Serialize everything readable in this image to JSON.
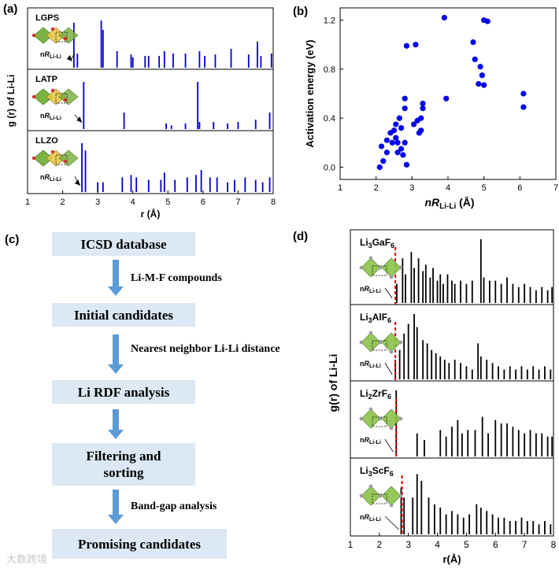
{
  "panel_labels": {
    "a": "(a)",
    "b": "(b)",
    "c": "(c)",
    "d": "(d)"
  },
  "chart_data": [
    {
      "type": "line",
      "id": "a",
      "title": "",
      "xlabel": "r (Å)",
      "ylabel": "g (r) of Li-Li",
      "xlim": [
        1,
        8
      ],
      "x_ticks": [
        "1",
        "2",
        "3",
        "4",
        "5",
        "6",
        "7",
        "8"
      ],
      "annotation_prefix": "n",
      "annotation_symbol": "R",
      "annotation_sub": "Li-Li",
      "color": "#0000cc",
      "subplots": [
        {
          "name": "LGPS",
          "peaks": [
            [
              2.32,
              0.95
            ],
            [
              2.42,
              0.3
            ],
            [
              3.1,
              1.0
            ],
            [
              3.15,
              0.8
            ],
            [
              3.55,
              0.35
            ],
            [
              3.95,
              0.28
            ],
            [
              4.0,
              0.22
            ],
            [
              4.35,
              0.25
            ],
            [
              4.45,
              0.25
            ],
            [
              4.75,
              0.25
            ],
            [
              4.9,
              0.35
            ],
            [
              5.15,
              0.3
            ],
            [
              5.5,
              0.3
            ],
            [
              5.9,
              0.35
            ],
            [
              6.05,
              0.25
            ],
            [
              6.35,
              0.28
            ],
            [
              6.8,
              0.4
            ],
            [
              7.3,
              0.28
            ],
            [
              7.55,
              0.55
            ],
            [
              7.65,
              0.25
            ],
            [
              7.95,
              0.3
            ]
          ]
        },
        {
          "name": "LATP",
          "peaks": [
            [
              2.6,
              1.0
            ],
            [
              3.75,
              0.35
            ],
            [
              4.95,
              0.12
            ],
            [
              5.1,
              0.08
            ],
            [
              5.5,
              0.12
            ],
            [
              5.85,
              1.0
            ],
            [
              5.9,
              0.15
            ],
            [
              6.3,
              0.15
            ],
            [
              6.7,
              0.12
            ],
            [
              7.0,
              0.15
            ],
            [
              7.5,
              0.2
            ],
            [
              7.9,
              0.35
            ]
          ]
        },
        {
          "name": "LLZO",
          "peaks": [
            [
              2.55,
              1.0
            ],
            [
              2.65,
              0.85
            ],
            [
              3.0,
              0.2
            ],
            [
              3.15,
              0.2
            ],
            [
              3.7,
              0.3
            ],
            [
              3.95,
              0.35
            ],
            [
              4.1,
              0.3
            ],
            [
              4.45,
              0.25
            ],
            [
              4.8,
              0.25
            ],
            [
              4.9,
              0.4
            ],
            [
              5.2,
              0.25
            ],
            [
              5.55,
              0.3
            ],
            [
              5.8,
              0.35
            ],
            [
              5.95,
              0.45
            ],
            [
              6.2,
              0.3
            ],
            [
              6.4,
              0.3
            ],
            [
              6.7,
              0.2
            ],
            [
              6.9,
              0.25
            ],
            [
              7.2,
              0.3
            ],
            [
              7.5,
              0.25
            ],
            [
              7.7,
              0.2
            ],
            [
              7.9,
              0.3
            ]
          ]
        }
      ]
    },
    {
      "type": "scatter",
      "id": "b",
      "title": "",
      "xlabel_prefix": "n",
      "xlabel_symbol": "R",
      "xlabel_sub": "Li-Li",
      "xlabel_unit": "(Å)",
      "ylabel": "Activation energy (eV)",
      "xlim": [
        1,
        7
      ],
      "ylim": [
        -0.1,
        1.3
      ],
      "x_ticks": [
        "1",
        "2",
        "3",
        "4",
        "5",
        "6",
        "7"
      ],
      "y_ticks": [
        "0.0",
        "0.4",
        "0.8",
        "1.2"
      ],
      "color": "#0000ee",
      "points": [
        [
          2.1,
          0.0
        ],
        [
          2.15,
          0.17
        ],
        [
          2.2,
          0.05
        ],
        [
          2.3,
          0.12
        ],
        [
          2.3,
          0.22
        ],
        [
          2.4,
          0.28
        ],
        [
          2.45,
          0.2
        ],
        [
          2.5,
          0.3
        ],
        [
          2.55,
          0.24
        ],
        [
          2.55,
          0.35
        ],
        [
          2.6,
          0.12
        ],
        [
          2.6,
          0.2
        ],
        [
          2.65,
          0.4
        ],
        [
          2.7,
          0.15
        ],
        [
          2.7,
          0.32
        ],
        [
          2.75,
          0.1
        ],
        [
          2.8,
          0.2
        ],
        [
          2.8,
          0.48
        ],
        [
          2.8,
          0.56
        ],
        [
          2.85,
          0.99
        ],
        [
          2.85,
          0.02
        ],
        [
          3.05,
          0.35
        ],
        [
          3.1,
          1.0
        ],
        [
          3.15,
          0.38
        ],
        [
          3.2,
          0.28
        ],
        [
          3.25,
          0.3
        ],
        [
          3.25,
          0.4
        ],
        [
          3.3,
          0.48
        ],
        [
          3.3,
          0.52
        ],
        [
          3.9,
          1.22
        ],
        [
          3.95,
          0.56
        ],
        [
          4.7,
          1.02
        ],
        [
          4.75,
          0.88
        ],
        [
          4.85,
          0.68
        ],
        [
          4.9,
          0.82
        ],
        [
          4.95,
          0.75
        ],
        [
          5.0,
          0.67
        ],
        [
          5.0,
          1.2
        ],
        [
          5.1,
          1.19
        ],
        [
          6.1,
          0.6
        ],
        [
          6.1,
          0.49
        ]
      ]
    },
    {
      "type": "line",
      "id": "d",
      "title": "",
      "xlabel": "r(Å)",
      "ylabel": "g(r) of Li-Li",
      "xlim": [
        1,
        8
      ],
      "x_ticks": [
        "1",
        "2",
        "3",
        "4",
        "5",
        "6",
        "7",
        "8"
      ],
      "annotation_prefix": "n",
      "annotation_symbol": "R",
      "annotation_sub": "Li-Li",
      "color": "#000000",
      "cutoff_color": "#e00000",
      "subplots": [
        {
          "name_main": "Li",
          "name_sub1": "3",
          "name_mid": "GaF",
          "name_sub2": "6",
          "cutoff": 2.55,
          "peaks": [
            [
              2.6,
              0.3
            ],
            [
              2.8,
              0.7
            ],
            [
              2.9,
              0.45
            ],
            [
              3.1,
              0.8
            ],
            [
              3.2,
              0.55
            ],
            [
              3.35,
              0.7
            ],
            [
              3.5,
              0.5
            ],
            [
              3.6,
              0.6
            ],
            [
              3.75,
              0.4
            ],
            [
              3.85,
              0.55
            ],
            [
              4.0,
              0.35
            ],
            [
              4.1,
              0.45
            ],
            [
              4.2,
              0.3
            ],
            [
              4.35,
              0.45
            ],
            [
              4.5,
              0.35
            ],
            [
              4.6,
              0.3
            ],
            [
              4.8,
              0.35
            ],
            [
              5.0,
              0.3
            ],
            [
              5.2,
              0.35
            ],
            [
              5.5,
              1.0
            ],
            [
              5.6,
              0.4
            ],
            [
              5.8,
              0.35
            ],
            [
              6.0,
              0.35
            ],
            [
              6.2,
              0.3
            ],
            [
              6.4,
              0.4
            ],
            [
              6.6,
              0.3
            ],
            [
              6.8,
              0.25
            ],
            [
              7.0,
              0.3
            ],
            [
              7.2,
              0.25
            ],
            [
              7.4,
              0.2
            ],
            [
              7.6,
              0.25
            ],
            [
              7.8,
              0.2
            ],
            [
              7.95,
              0.25
            ]
          ]
        },
        {
          "name_main": "Li",
          "name_sub1": "3",
          "name_mid": "AlF",
          "name_sub2": "6",
          "cutoff": 2.55,
          "peaks": [
            [
              2.55,
              0.3
            ],
            [
              2.7,
              0.45
            ],
            [
              2.85,
              0.7
            ],
            [
              3.0,
              0.85
            ],
            [
              3.2,
              1.0
            ],
            [
              3.3,
              0.8
            ],
            [
              3.5,
              0.6
            ],
            [
              3.65,
              0.55
            ],
            [
              3.8,
              0.45
            ],
            [
              3.95,
              0.4
            ],
            [
              4.1,
              0.35
            ],
            [
              4.25,
              0.3
            ],
            [
              4.4,
              0.25
            ],
            [
              4.6,
              0.3
            ],
            [
              4.8,
              0.25
            ],
            [
              5.0,
              0.2
            ],
            [
              5.2,
              0.15
            ],
            [
              5.4,
              0.55
            ],
            [
              5.5,
              0.35
            ],
            [
              5.7,
              0.3
            ],
            [
              5.9,
              0.25
            ],
            [
              6.1,
              0.2
            ],
            [
              6.3,
              0.15
            ],
            [
              6.5,
              0.2
            ],
            [
              6.7,
              0.15
            ],
            [
              6.9,
              0.2
            ],
            [
              7.1,
              0.15
            ],
            [
              7.3,
              0.2
            ],
            [
              7.5,
              0.15
            ],
            [
              7.7,
              0.2
            ],
            [
              7.9,
              0.15
            ]
          ]
        },
        {
          "name_main": "Li",
          "name_sub1": "2",
          "name_mid": "ZrF",
          "name_sub2": "6",
          "cutoff": 2.58,
          "peaks": [
            [
              2.58,
              1.0
            ],
            [
              3.3,
              0.35
            ],
            [
              3.55,
              0.25
            ],
            [
              4.1,
              0.4
            ],
            [
              4.3,
              0.3
            ],
            [
              4.5,
              0.45
            ],
            [
              4.7,
              0.55
            ],
            [
              4.85,
              0.35
            ],
            [
              5.05,
              0.4
            ],
            [
              5.3,
              0.4
            ],
            [
              5.55,
              0.6
            ],
            [
              5.75,
              0.35
            ],
            [
              6.0,
              0.55
            ],
            [
              6.2,
              0.5
            ],
            [
              6.4,
              0.5
            ],
            [
              6.6,
              0.45
            ],
            [
              6.8,
              0.4
            ],
            [
              7.0,
              0.35
            ],
            [
              7.2,
              0.4
            ],
            [
              7.4,
              0.35
            ],
            [
              7.6,
              0.35
            ],
            [
              7.8,
              0.3
            ],
            [
              7.95,
              0.3
            ]
          ]
        },
        {
          "name_main": "Li",
          "name_sub1": "3",
          "name_mid": "ScF",
          "name_sub2": "6",
          "cutoff": 2.78,
          "peaks": [
            [
              2.75,
              0.7
            ],
            [
              2.85,
              0.55
            ],
            [
              3.15,
              0.55
            ],
            [
              3.3,
              0.9
            ],
            [
              3.45,
              0.8
            ],
            [
              3.7,
              0.55
            ],
            [
              3.9,
              0.45
            ],
            [
              4.1,
              0.4
            ],
            [
              4.3,
              0.3
            ],
            [
              4.5,
              0.35
            ],
            [
              4.7,
              0.3
            ],
            [
              4.9,
              0.25
            ],
            [
              5.1,
              0.3
            ],
            [
              5.35,
              0.45
            ],
            [
              5.5,
              0.4
            ],
            [
              5.7,
              0.35
            ],
            [
              5.9,
              0.3
            ],
            [
              6.1,
              0.25
            ],
            [
              6.3,
              0.25
            ],
            [
              6.5,
              0.2
            ],
            [
              6.7,
              0.2
            ],
            [
              6.9,
              0.25
            ],
            [
              7.1,
              0.2
            ],
            [
              7.3,
              0.2
            ],
            [
              7.5,
              0.15
            ],
            [
              7.7,
              0.2
            ],
            [
              7.9,
              0.15
            ]
          ]
        }
      ]
    }
  ],
  "flowchart": {
    "steps": [
      "ICSD database",
      "Initial candidates",
      "Li RDF analysis",
      "Filtering and sorting",
      "Promising candidates"
    ],
    "notes": [
      "Li-M-F compounds",
      "Nearest neighbor Li-Li distance",
      "",
      "Band-gap analysis"
    ]
  },
  "watermark": "大数跨境"
}
